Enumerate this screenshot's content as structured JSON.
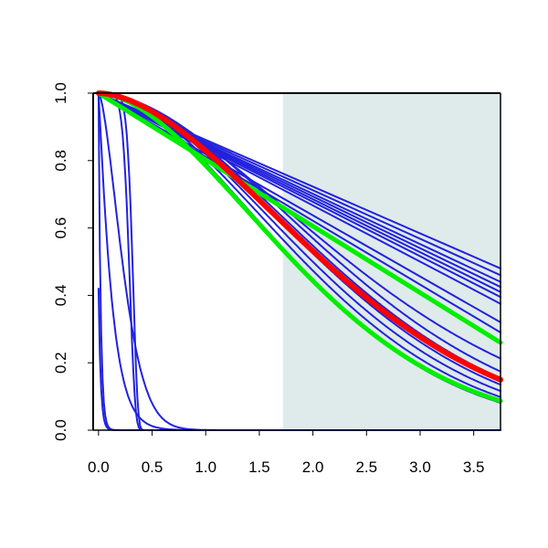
{
  "chart_data": {
    "type": "line",
    "xlim": [
      -0.05,
      3.75
    ],
    "ylim": [
      0.0,
      1.0
    ],
    "x_ticks": [
      "0.0",
      "0.5",
      "1.0",
      "1.5",
      "2.0",
      "2.5",
      "3.0",
      "3.5"
    ],
    "x_tick_values": [
      0.0,
      0.5,
      1.0,
      1.5,
      2.0,
      2.5,
      3.0,
      3.5
    ],
    "y_ticks": [
      "0.0",
      "0.2",
      "0.4",
      "0.6",
      "0.8",
      "1.0"
    ],
    "y_tick_values": [
      0.0,
      0.2,
      0.4,
      0.6,
      0.8,
      1.0
    ],
    "shaded_region": {
      "x_start": 1.72,
      "x_end": 3.75,
      "color": "#dfeaea"
    },
    "colors": {
      "sample": "#2222dd",
      "mean": "#ff0000",
      "bounds": "#00ee00",
      "axis": "#000000"
    },
    "series": [
      {
        "role": "sample",
        "form": "linear",
        "x": [
          0,
          3.75
        ],
        "y": [
          1.0,
          0.48
        ]
      },
      {
        "role": "sample",
        "form": "linear",
        "x": [
          0,
          3.75
        ],
        "y": [
          1.0,
          0.46
        ]
      },
      {
        "role": "sample",
        "form": "linear",
        "x": [
          0,
          3.75
        ],
        "y": [
          1.0,
          0.44
        ]
      },
      {
        "role": "sample",
        "form": "linear",
        "x": [
          0,
          3.75
        ],
        "y": [
          1.0,
          0.425
        ]
      },
      {
        "role": "sample",
        "form": "linear",
        "x": [
          0,
          3.75
        ],
        "y": [
          1.0,
          0.41
        ]
      },
      {
        "role": "sample",
        "form": "linear",
        "x": [
          0,
          3.75
        ],
        "y": [
          1.0,
          0.395
        ]
      },
      {
        "role": "sample",
        "form": "linear",
        "x": [
          0,
          3.75
        ],
        "y": [
          1.0,
          0.375
        ]
      },
      {
        "role": "sample",
        "form": "linear",
        "x": [
          0,
          3.75
        ],
        "y": [
          1.0,
          0.32
        ]
      },
      {
        "role": "sample",
        "form": "linear",
        "x": [
          0,
          3.75
        ],
        "y": [
          1.0,
          0.29
        ]
      },
      {
        "role": "sample",
        "form": "weibull",
        "scale": 2.25,
        "shape": 1.8,
        "x": [
          0,
          3.75
        ],
        "y": [
          1.0,
          0.07
        ]
      },
      {
        "role": "sample",
        "form": "weibull",
        "scale": 2.35,
        "shape": 1.8,
        "x": [
          0,
          3.75
        ],
        "y": [
          1.0,
          0.09
        ]
      },
      {
        "role": "sample",
        "form": "weibull",
        "scale": 2.45,
        "shape": 1.8,
        "x": [
          0,
          3.75
        ],
        "y": [
          1.0,
          0.11
        ]
      },
      {
        "role": "sample",
        "form": "weibull",
        "scale": 2.55,
        "shape": 1.8,
        "x": [
          0,
          3.75
        ],
        "y": [
          1.0,
          0.13
        ]
      },
      {
        "role": "sample",
        "form": "weibull",
        "scale": 2.65,
        "shape": 1.8,
        "x": [
          0,
          3.75
        ],
        "y": [
          1.0,
          0.16
        ]
      },
      {
        "role": "sample",
        "form": "weibull",
        "scale": 2.75,
        "shape": 1.8,
        "x": [
          0,
          3.75
        ],
        "y": [
          1.0,
          0.18
        ]
      },
      {
        "role": "sample",
        "form": "weibull",
        "scale": 2.9,
        "shape": 1.7,
        "x": [
          0,
          3.75
        ],
        "y": [
          1.0,
          0.22
        ]
      },
      {
        "role": "sample",
        "form": "weibull",
        "scale": 0.13,
        "shape": 1.1,
        "x": [
          0,
          3.75
        ],
        "y": [
          1.0,
          0.0
        ]
      },
      {
        "role": "sample",
        "form": "weibull",
        "scale": 0.28,
        "shape": 1.6,
        "x": [
          0,
          3.75
        ],
        "y": [
          1.0,
          0.0
        ]
      },
      {
        "role": "sample",
        "form": "weibull",
        "scale": 0.3,
        "shape": 7.0,
        "x": [
          0,
          3.75
        ],
        "y": [
          1.0,
          0.0
        ]
      },
      {
        "role": "sample",
        "form": "weibull",
        "scale": 0.33,
        "shape": 9.0,
        "x": [
          0,
          3.75
        ],
        "y": [
          1.0,
          0.0
        ]
      },
      {
        "role": "sample",
        "form": "weibull",
        "scale": 0.02,
        "shape": 1.0,
        "x": [
          0,
          3.75
        ],
        "y": [
          1.0,
          0.0
        ]
      },
      {
        "role": "sample",
        "form": "weibull",
        "scale": 0.02,
        "shape": 1.0,
        "y0": 0.42,
        "x": [
          0,
          3.75
        ],
        "y": [
          0.42,
          0.0
        ]
      },
      {
        "role": "upper",
        "form": "linear",
        "x": [
          0,
          3.75
        ],
        "y": [
          1.0,
          0.26
        ]
      },
      {
        "role": "mean",
        "form": "weibull",
        "scale": 2.6,
        "shape": 1.75,
        "x": [
          0,
          3.75
        ],
        "y": [
          1.0,
          0.135
        ]
      },
      {
        "role": "lower",
        "form": "weibull",
        "scale": 2.25,
        "shape": 1.75,
        "x": [
          0,
          3.75
        ],
        "y": [
          1.0,
          0.065
        ]
      }
    ]
  }
}
